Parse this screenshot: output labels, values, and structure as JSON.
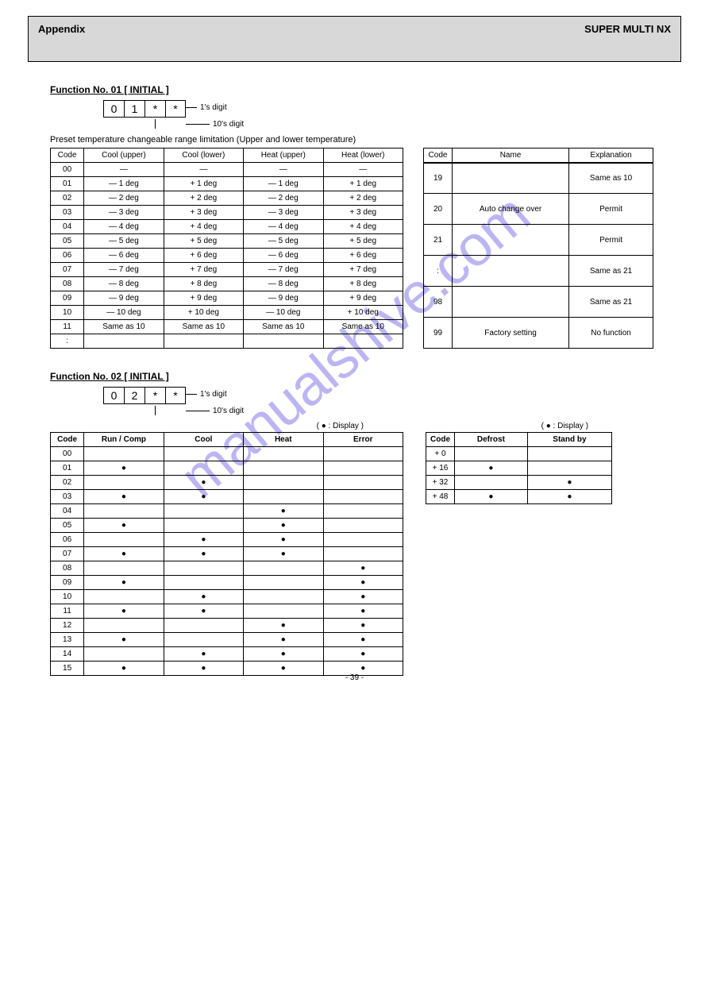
{
  "header": {
    "left": "Appendix",
    "right": "SUPER MULTI NX"
  },
  "section1": {
    "title": "Function No. 01 [ INITIAL ]",
    "cell_code_a": "0",
    "cell_code_b": "1",
    "lbl_1s": "1's digit",
    "lbl_10s": "10's digit",
    "preset_note": "Preset temperature changeable range limitation (Upper and lower temperature)",
    "table1": {
      "headers": [
        "Code",
        "Cool (upper)",
        "Cool (lower)",
        "Heat (upper)",
        "Heat (lower)"
      ],
      "rows": [
        [
          "00",
          "—",
          "—",
          "—",
          "—"
        ],
        [
          "01",
          "— 1 deg",
          "+ 1 deg",
          "— 1 deg",
          "+ 1 deg"
        ],
        [
          "02",
          "— 2 deg",
          "+ 2 deg",
          "— 2 deg",
          "+ 2 deg"
        ],
        [
          "03",
          "— 3 deg",
          "+ 3 deg",
          "— 3 deg",
          "+ 3 deg"
        ],
        [
          "04",
          "— 4 deg",
          "+ 4 deg",
          "— 4 deg",
          "+ 4 deg"
        ],
        [
          "05",
          "— 5 deg",
          "+ 5 deg",
          "— 5 deg",
          "+ 5 deg"
        ],
        [
          "06",
          "— 6 deg",
          "+ 6 deg",
          "— 6 deg",
          "+ 6 deg"
        ],
        [
          "07",
          "— 7 deg",
          "+ 7 deg",
          "— 7 deg",
          "+ 7 deg"
        ],
        [
          "08",
          "— 8 deg",
          "+ 8 deg",
          "— 8 deg",
          "+ 8 deg"
        ],
        [
          "09",
          "— 9 deg",
          "+ 9 deg",
          "— 9 deg",
          "+ 9 deg"
        ],
        [
          "10",
          "— 10 deg",
          "+ 10 deg",
          "— 10 deg",
          "+ 10 deg"
        ],
        [
          "11",
          "Same as 10",
          "Same as 10",
          "Same as 10",
          "Same as 10"
        ],
        [
          ":",
          "",
          "",
          "",
          ""
        ]
      ]
    },
    "table2": {
      "headers": [
        "Code",
        "Name",
        "Explanation"
      ],
      "rows": [
        [
          "19",
          "",
          "Same as 10"
        ],
        [
          "20",
          "Auto change over",
          "Permit"
        ],
        [
          "21",
          "",
          "Permit"
        ],
        [
          ":",
          "",
          "Same as 21"
        ],
        [
          "98",
          "",
          "Same as 21"
        ],
        [
          "99",
          "Factory setting",
          "No function"
        ]
      ]
    }
  },
  "section2": {
    "title": "Function No. 02 [ INITIAL ]",
    "cell_code_a": "0",
    "cell_code_b": "2",
    "lbl_1s": "1's digit",
    "lbl_10s": "10's digit",
    "super_header": "(  ● : Display )",
    "table3": {
      "headers": [
        "Code",
        "Run / Comp",
        "Cool",
        "Heat",
        "Error"
      ],
      "rows": [
        [
          "00",
          "",
          "",
          "",
          ""
        ],
        [
          "01",
          "●",
          "",
          "",
          ""
        ],
        [
          "02",
          "",
          "●",
          "",
          ""
        ],
        [
          "03",
          "●",
          "●",
          "",
          ""
        ],
        [
          "04",
          "",
          "",
          "●",
          ""
        ],
        [
          "05",
          "●",
          "",
          "●",
          ""
        ],
        [
          "06",
          "",
          "●",
          "●",
          ""
        ],
        [
          "07",
          "●",
          "●",
          "●",
          ""
        ],
        [
          "08",
          "",
          "",
          "",
          "●"
        ],
        [
          "09",
          "●",
          "",
          "",
          "●"
        ],
        [
          "10",
          "",
          "●",
          "",
          "●"
        ],
        [
          "11",
          "●",
          "●",
          "",
          "●"
        ],
        [
          "12",
          "",
          "",
          "●",
          "●"
        ],
        [
          "13",
          "●",
          "",
          "●",
          "●"
        ],
        [
          "14",
          "",
          "●",
          "●",
          "●"
        ],
        [
          "15",
          "●",
          "●",
          "●",
          "●"
        ]
      ]
    },
    "table4": {
      "headers": [
        "Code",
        "Defrost",
        "Stand by"
      ],
      "rows": [
        [
          "+ 0",
          "",
          ""
        ],
        [
          "+ 16",
          "●",
          ""
        ],
        [
          "+ 32",
          "",
          "●"
        ],
        [
          "+ 48",
          "●",
          "●"
        ]
      ]
    }
  },
  "page": "- 39 -"
}
